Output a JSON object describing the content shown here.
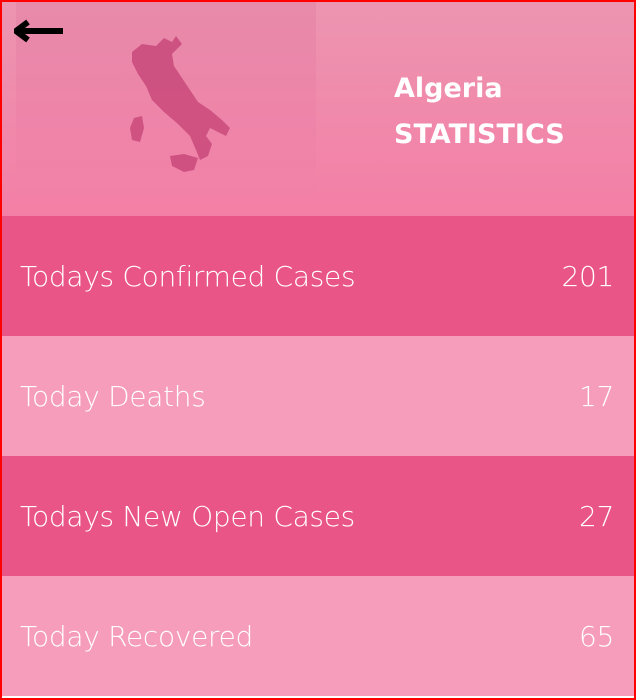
{
  "header": {
    "country": "Algeria",
    "subtitle": "STATISTICS",
    "back_icon": "arrow-left-icon",
    "map_icon": "country-map-icon"
  },
  "stats": [
    {
      "label": "Todays Confirmed Cases",
      "value": "201"
    },
    {
      "label": "Today Deaths",
      "value": "17"
    },
    {
      "label": "Todays New Open Cases",
      "value": "27"
    },
    {
      "label": "Today Recovered",
      "value": "65"
    }
  ],
  "colors": {
    "row_dark": "#ea5587",
    "row_light": "#f59dbb",
    "header": "#f07fa6",
    "map": "#c9497a"
  }
}
